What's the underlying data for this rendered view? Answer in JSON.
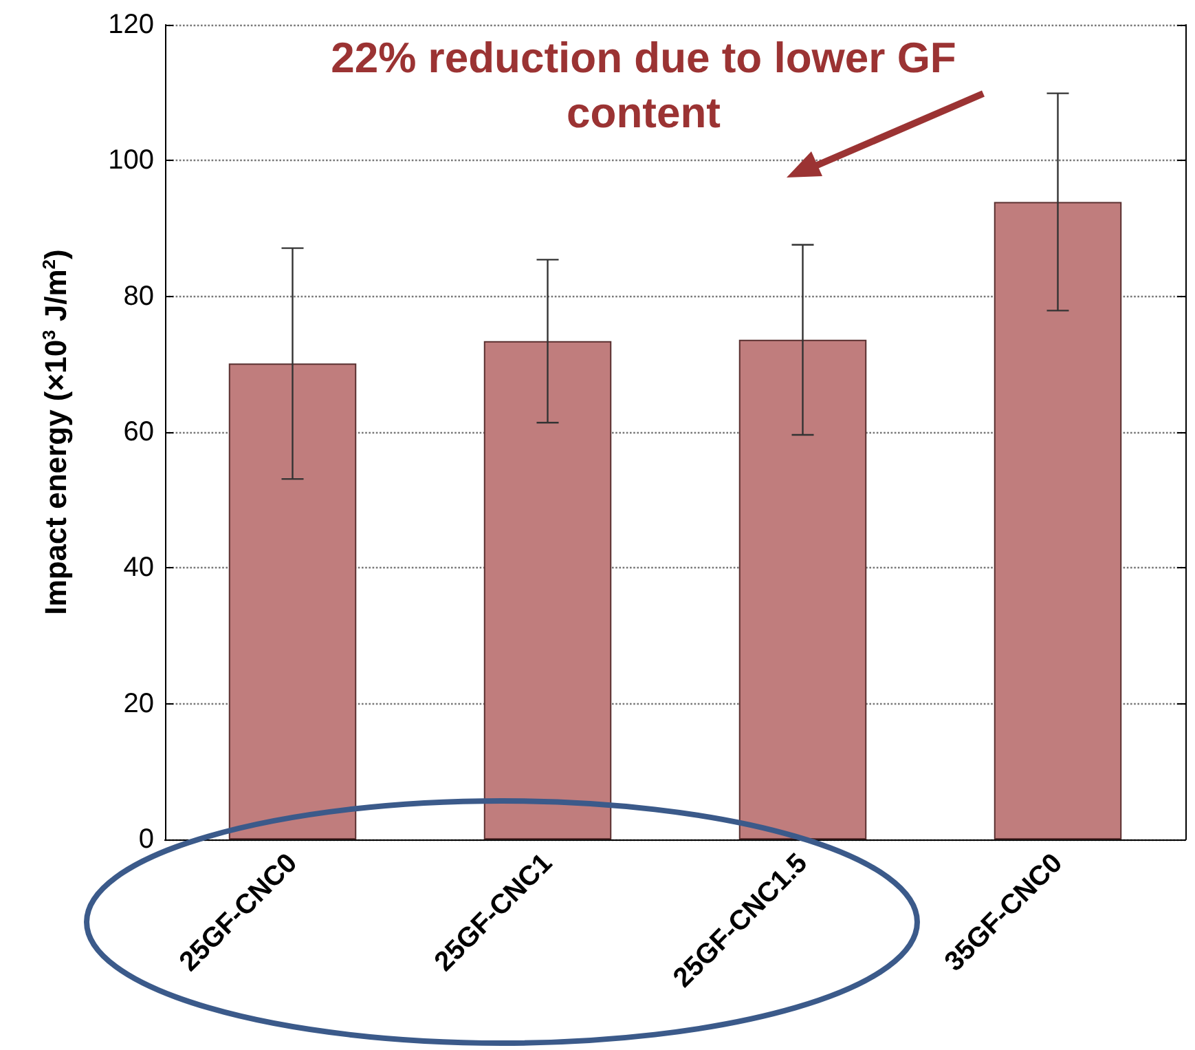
{
  "chart_data": {
    "type": "bar",
    "ylabel": "Impact energy (×10$^{3}$ J/m$^{2}$)",
    "categories": [
      "25GF-CNC0",
      "25GF-CNC1",
      "25GF-CNC1.5",
      "35GF-CNC0"
    ],
    "values": [
      70.1,
      73.4,
      73.6,
      93.9
    ],
    "errors": [
      17,
      12,
      14,
      16
    ],
    "color": "#c07d7d",
    "ylim": [
      0,
      120
    ],
    "yticks": [
      0,
      20,
      40,
      60,
      80,
      100,
      120
    ],
    "grid": "y",
    "annotations": [
      "22% reduction due to lower GF\ncontent"
    ]
  }
}
